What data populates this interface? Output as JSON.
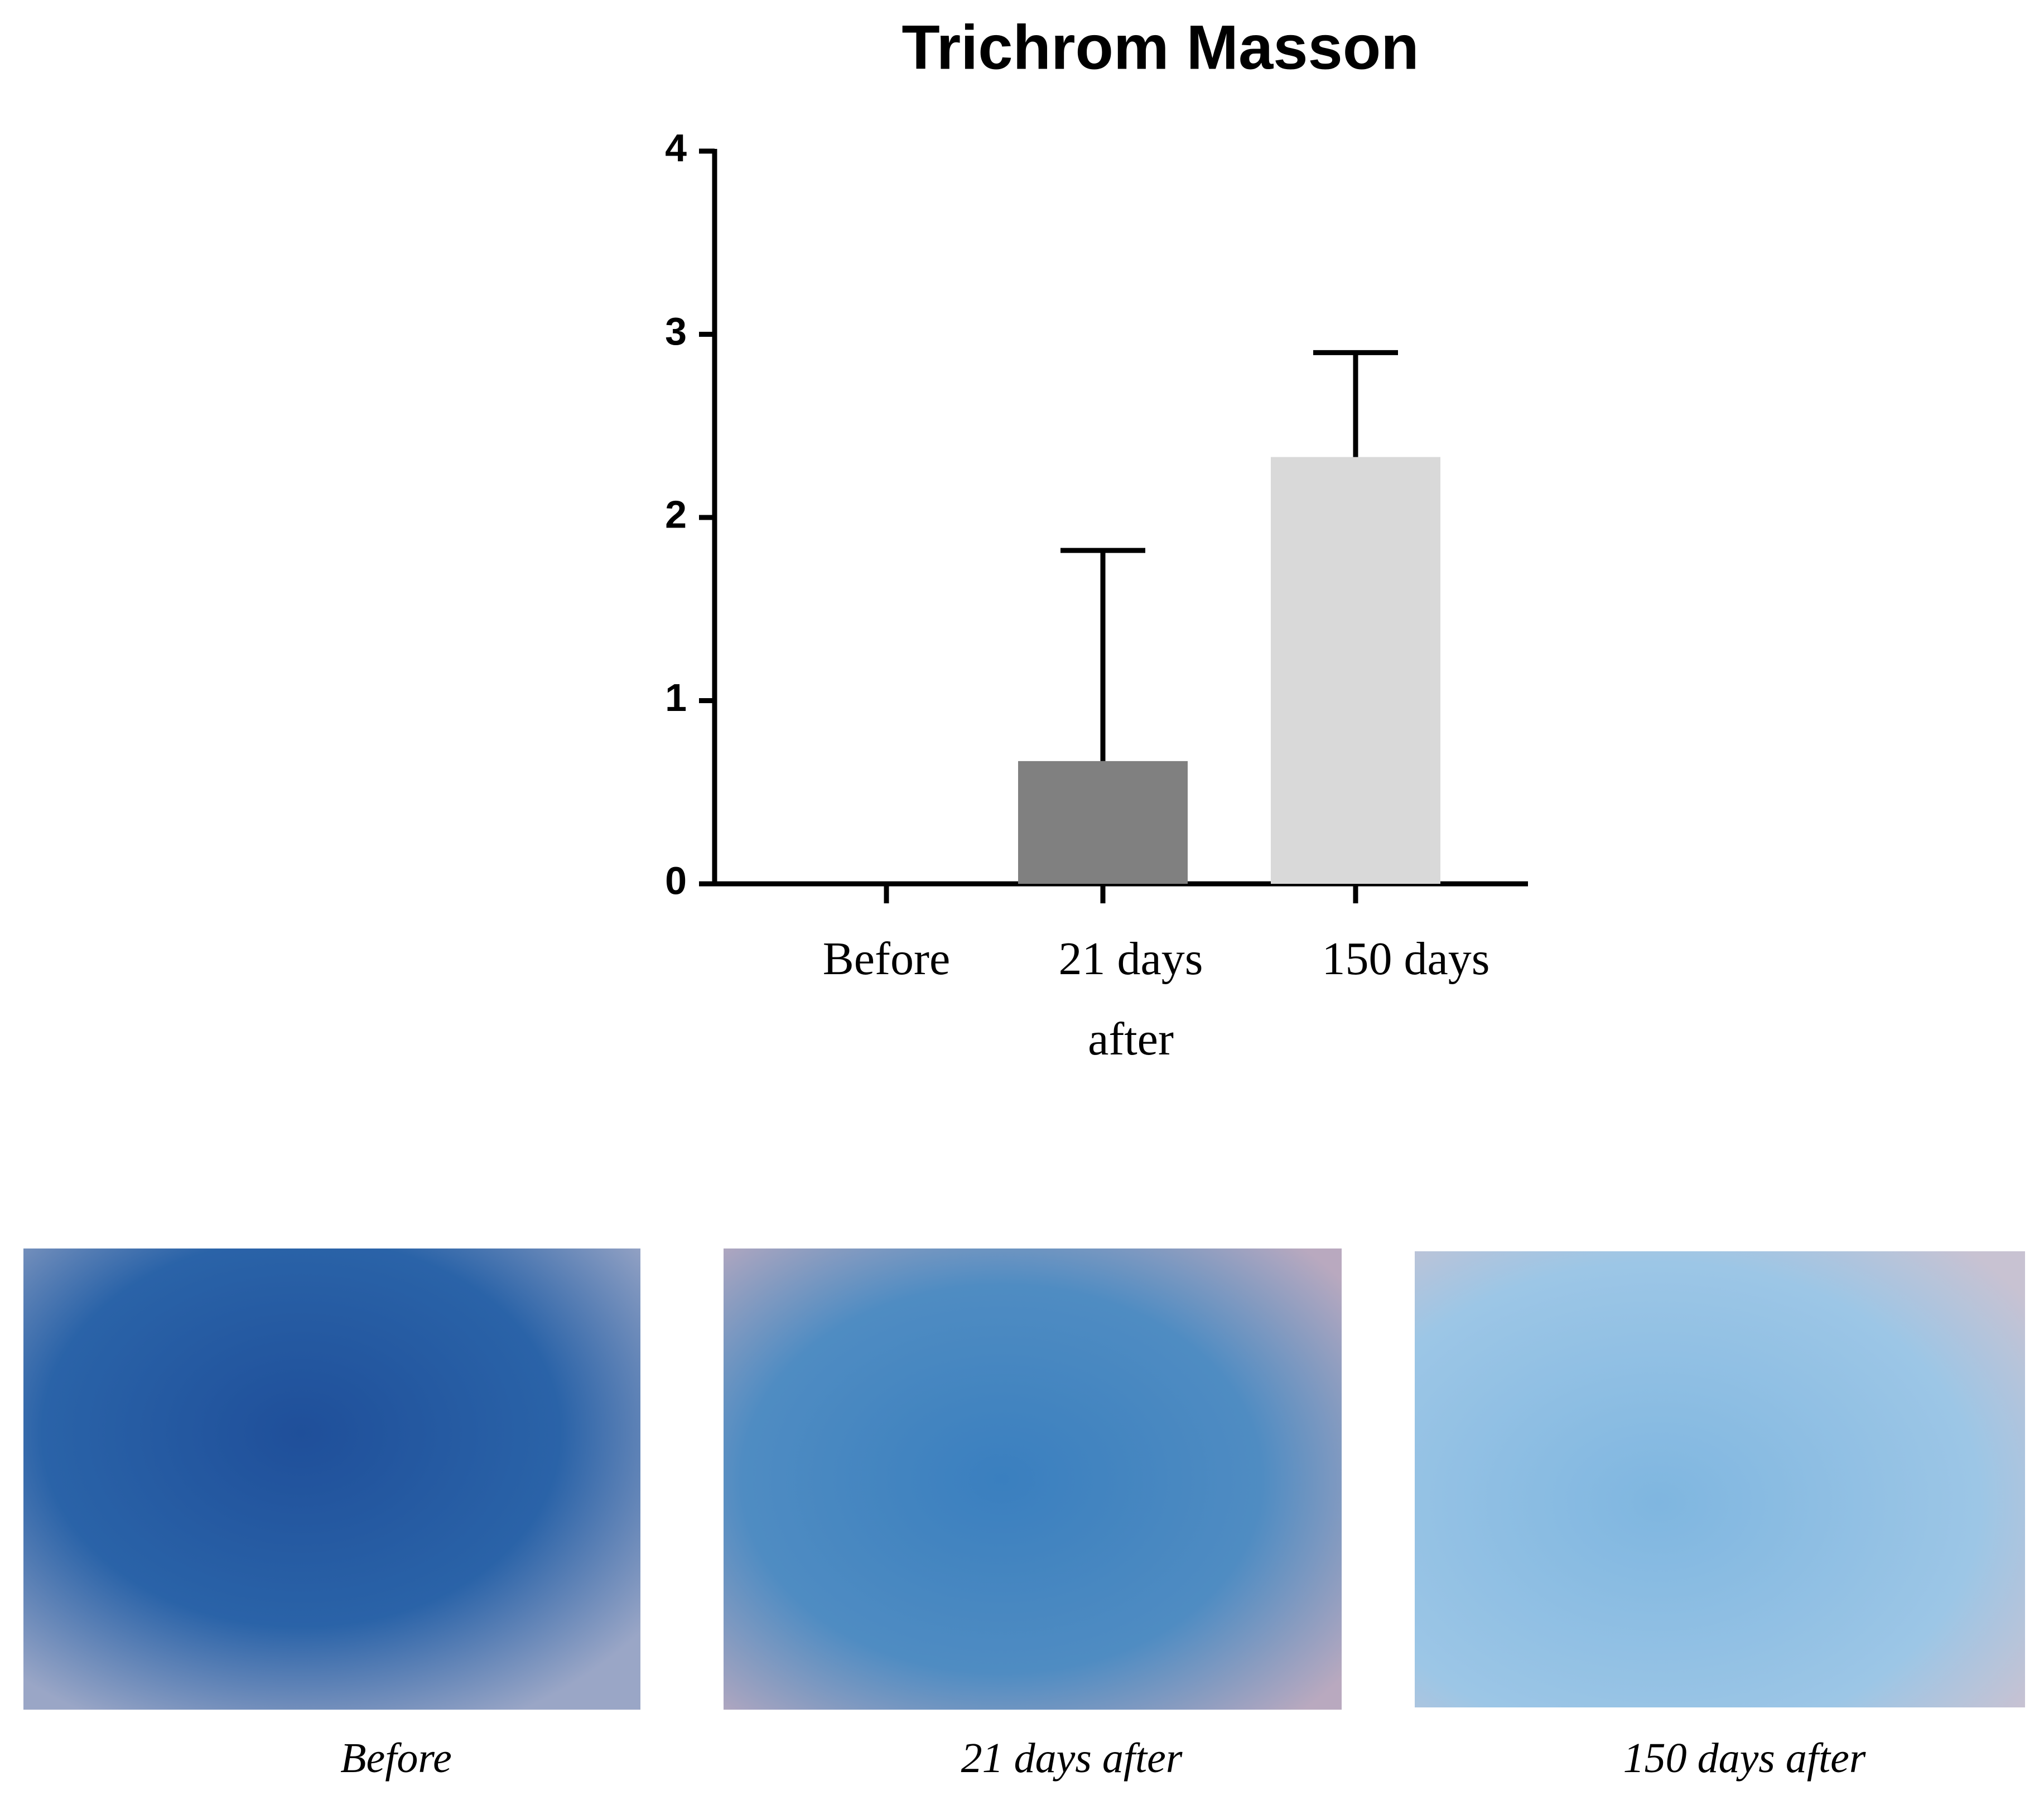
{
  "chart_data": {
    "type": "bar",
    "title": "Trichrom Masson",
    "categories": [
      "Before",
      "21 days after",
      "150 days"
    ],
    "values": [
      0,
      0.67,
      2.33
    ],
    "errors": [
      null,
      1.15,
      0.57
    ],
    "colors": [
      "#808080",
      "#808080",
      "#d9d9d9"
    ],
    "ylim": [
      0,
      4
    ],
    "yticks": [
      0,
      1,
      2,
      3,
      4
    ]
  },
  "panels": [
    "Before",
    "21 days after",
    "150 days after"
  ]
}
